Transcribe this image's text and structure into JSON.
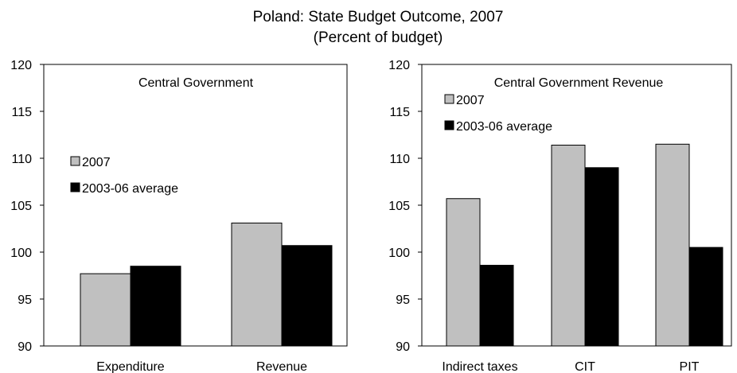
{
  "figure": {
    "title": "Poland: State Budget Outcome, 2007",
    "subtitle": "(Percent of budget)"
  },
  "colors": {
    "series_2007": "#c0c0c0",
    "series_avg": "#000000",
    "axis": "#000000",
    "background": "#ffffff"
  },
  "chart_data": [
    {
      "type": "bar",
      "title": "Central Government",
      "categories": [
        "Expenditure",
        "Revenue"
      ],
      "series": [
        {
          "name": "2007",
          "values": [
            97.7,
            103.1
          ]
        },
        {
          "name": "2003-06 average",
          "values": [
            98.5,
            100.7
          ]
        }
      ],
      "ylim": [
        90,
        120
      ],
      "yticks": [
        90,
        95,
        100,
        105,
        110,
        115,
        120
      ],
      "xlabel": "",
      "ylabel": "",
      "grid": false,
      "legend": "middle-left"
    },
    {
      "type": "bar",
      "title": "Central Government Revenue",
      "categories": [
        "Indirect taxes",
        "CIT",
        "PIT"
      ],
      "series": [
        {
          "name": "2007",
          "values": [
            105.7,
            111.4,
            111.5
          ]
        },
        {
          "name": "2003-06 average",
          "values": [
            98.6,
            109.0,
            100.5
          ]
        }
      ],
      "ylim": [
        90,
        120
      ],
      "yticks": [
        90,
        95,
        100,
        105,
        110,
        115,
        120
      ],
      "xlabel": "",
      "ylabel": "",
      "grid": false,
      "legend": "top-left"
    }
  ]
}
